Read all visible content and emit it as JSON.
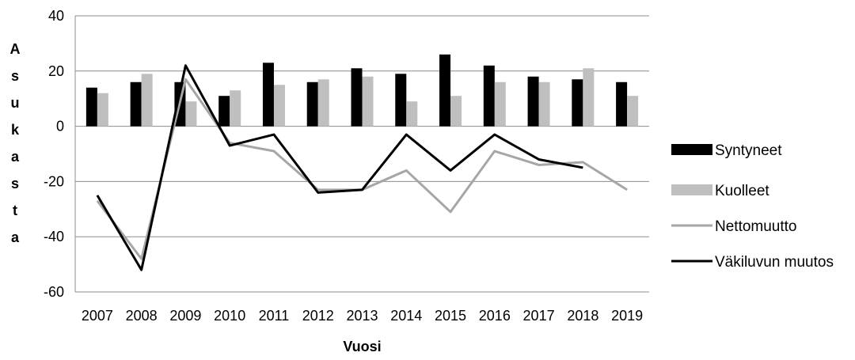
{
  "chart_data": {
    "type": "bar",
    "title": "",
    "xlabel": "Vuosi",
    "ylabel": "Asukasta",
    "ylim": [
      -60,
      40
    ],
    "yticks": [
      -60,
      -40,
      -20,
      0,
      20,
      40
    ],
    "grid": true,
    "legend_position": "right",
    "categories": [
      "2007",
      "2008",
      "2009",
      "2010",
      "2011",
      "2012",
      "2013",
      "2014",
      "2015",
      "2016",
      "2017",
      "2018",
      "2019"
    ],
    "series": [
      {
        "name": "Syntyneet",
        "kind": "bar",
        "color": "#000000",
        "values": [
          14,
          16,
          16,
          11,
          23,
          16,
          21,
          19,
          26,
          22,
          18,
          17,
          16
        ]
      },
      {
        "name": "Kuolleet",
        "kind": "bar",
        "color": "#bfbfbf",
        "values": [
          12,
          19,
          9,
          13,
          15,
          17,
          18,
          9,
          11,
          16,
          16,
          21,
          11
        ]
      },
      {
        "name": "Nettomuutto",
        "kind": "line",
        "color": "#a6a6a6",
        "values": [
          -27,
          -48,
          17,
          -6,
          -9,
          -23,
          -23,
          -16,
          -31,
          -9,
          -14,
          -13,
          -23
        ]
      },
      {
        "name": "Väkiluvun muutos",
        "kind": "line",
        "color": "#000000",
        "values": [
          -25,
          -52,
          22,
          -7,
          -3,
          -24,
          -23,
          -3,
          -16,
          -3,
          -12,
          -15,
          null
        ]
      }
    ]
  }
}
